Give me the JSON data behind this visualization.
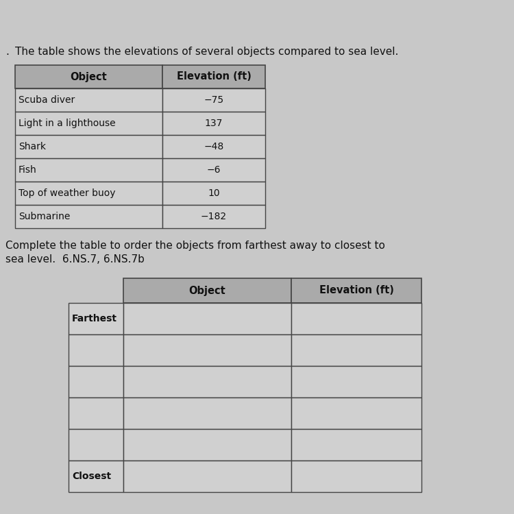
{
  "page_bg": "#c8c8c8",
  "intro_text": "The table shows the elevations of several objects compared to sea level.",
  "table1_header": [
    "Object",
    "Elevation (ft)"
  ],
  "table1_data": [
    [
      "Scuba diver",
      "−75"
    ],
    [
      "Light in a lighthouse",
      "137"
    ],
    [
      "Shark",
      "−48"
    ],
    [
      "Fish",
      "−6"
    ],
    [
      "Top of weather buoy",
      "10"
    ],
    [
      "Submarine",
      "−182"
    ]
  ],
  "instruction_line1": "Complete the table to order the objects from farthest away to closest to",
  "instruction_line2": "sea level.  6.NS.7, 6.NS.7b",
  "table2_header": [
    "Object",
    "Elevation (ft)"
  ],
  "table2_row_labels": [
    "Farthest",
    "",
    "",
    "",
    "",
    "Closest"
  ],
  "header_bg": "#aaaaaa",
  "cell_bg": "#d0d0d0",
  "header_font_size": 10.5,
  "cell_font_size": 10,
  "text_color": "#111111",
  "border_color": "#444444",
  "dot_text": ".",
  "figsize": [
    7.5,
    7.5
  ],
  "dpi": 100
}
